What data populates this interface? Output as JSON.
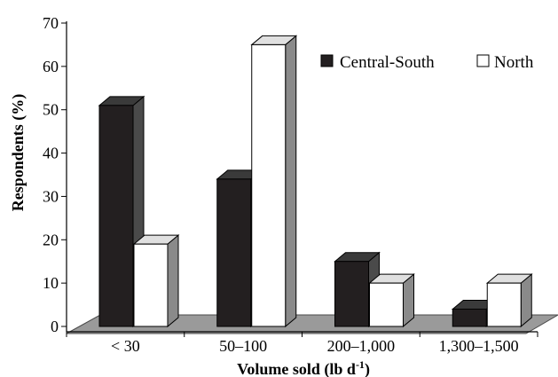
{
  "chart_data": {
    "type": "bar",
    "title": "",
    "xlabel": "Volume sold (lb d",
    "xlabel_superscript": "-1",
    "xlabel_suffix": ")",
    "ylabel": "Respondents (%)",
    "ylim": [
      0,
      70
    ],
    "yticks": [
      "0",
      "10",
      "20",
      "30",
      "40",
      "50",
      "60",
      "70"
    ],
    "categories": [
      "< 30",
      "50–100",
      "200–1,000",
      "1,300–1,500"
    ],
    "series": [
      {
        "name": "Central-South",
        "values": [
          51,
          34,
          15,
          4
        ],
        "color": "#231f20"
      },
      {
        "name": "North",
        "values": [
          19,
          65,
          10,
          10
        ],
        "color": "#ffffff"
      }
    ],
    "legend_position": "top-right",
    "grid": false,
    "style": "3d"
  }
}
